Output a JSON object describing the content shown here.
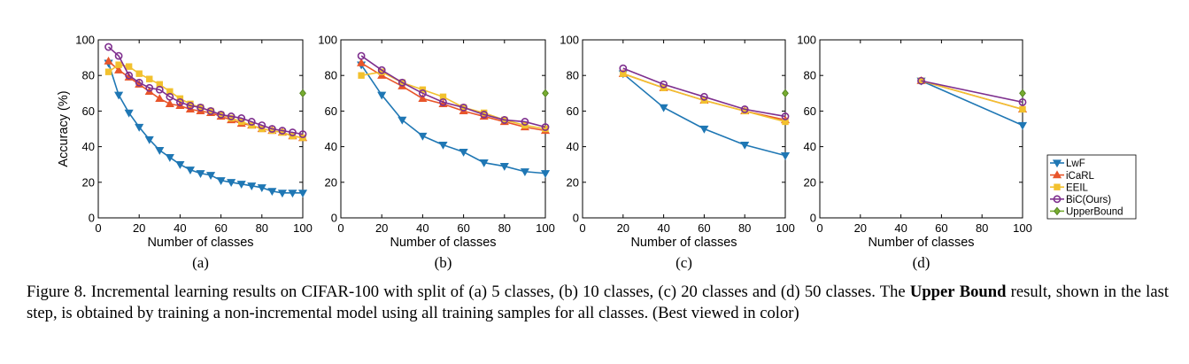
{
  "figure": {
    "caption": {
      "part1": "Figure 8. Incremental learning results on CIFAR-100 with split of (a) 5 classes, (b) 10 classes, (c) 20 classes and (d) 50 classes. The ",
      "bold1": "Upper",
      "bold2": "Bound",
      "part2": " result, shown in the last step, is obtained by training a non-incremental model using all training samples for all classes.  (Best viewed in color)"
    }
  },
  "colors": {
    "LwF": "#1f77b4",
    "iCaRL": "#e8552a",
    "EEIL": "#f2c12e",
    "BiC(Ours)": "#7e2f8e",
    "UpperBound": "#77ac30"
  },
  "legend_entries": [
    "LwF",
    "iCaRL",
    "EEIL",
    "BiC(Ours)",
    "UpperBound"
  ],
  "chart_data": [
    {
      "type": "line",
      "panel_label": "(a)",
      "xlabel": "Number of classes",
      "ylabel": "Accuracy (%)",
      "xlim": [
        0,
        100
      ],
      "ylim": [
        0,
        100
      ],
      "xticks": [
        0,
        20,
        40,
        60,
        80,
        100
      ],
      "yticks": [
        0,
        20,
        40,
        60,
        80,
        100
      ],
      "series": [
        {
          "name": "LwF",
          "marker": "tri-down",
          "x": [
            5,
            10,
            15,
            20,
            25,
            30,
            35,
            40,
            45,
            50,
            55,
            60,
            65,
            70,
            75,
            80,
            85,
            90,
            95,
            100
          ],
          "values": [
            87,
            69,
            59,
            51,
            44,
            38,
            34,
            30,
            27,
            25,
            24,
            21,
            20,
            19,
            18,
            17,
            15,
            14,
            14,
            14
          ]
        },
        {
          "name": "iCaRL",
          "marker": "tri-up",
          "x": [
            5,
            10,
            15,
            20,
            25,
            30,
            35,
            40,
            45,
            50,
            55,
            60,
            65,
            70,
            75,
            80,
            85,
            90,
            95,
            100
          ],
          "values": [
            88,
            83,
            79,
            75,
            71,
            67,
            64,
            63,
            61,
            60,
            59,
            57,
            55,
            53,
            52,
            50,
            49,
            48,
            46,
            45
          ]
        },
        {
          "name": "EEIL",
          "marker": "square",
          "x": [
            5,
            10,
            15,
            20,
            25,
            30,
            35,
            40,
            45,
            50,
            55,
            60,
            65,
            70,
            75,
            80,
            85,
            90,
            95,
            100
          ],
          "values": [
            82,
            86,
            85,
            81,
            78,
            75,
            71,
            67,
            64,
            62,
            60,
            58,
            56,
            54,
            52,
            50,
            49,
            48,
            46,
            45
          ]
        },
        {
          "name": "BiC(Ours)",
          "marker": "circle",
          "x": [
            5,
            10,
            15,
            20,
            25,
            30,
            35,
            40,
            45,
            50,
            55,
            60,
            65,
            70,
            75,
            80,
            85,
            90,
            95,
            100
          ],
          "values": [
            96,
            91,
            80,
            76,
            73,
            72,
            68,
            65,
            63,
            62,
            60,
            58,
            57,
            56,
            54,
            52,
            50,
            49,
            48,
            47
          ]
        },
        {
          "name": "UpperBound",
          "marker": "diamond",
          "x": [
            100
          ],
          "values": [
            70
          ]
        }
      ]
    },
    {
      "type": "line",
      "panel_label": "(b)",
      "xlabel": "Number of classes",
      "ylabel": "",
      "xlim": [
        0,
        100
      ],
      "ylim": [
        0,
        100
      ],
      "xticks": [
        0,
        20,
        40,
        60,
        80,
        100
      ],
      "yticks": [
        0,
        20,
        40,
        60,
        80,
        100
      ],
      "series": [
        {
          "name": "LwF",
          "marker": "tri-down",
          "x": [
            10,
            20,
            30,
            40,
            50,
            60,
            70,
            80,
            90,
            100
          ],
          "values": [
            86,
            69,
            55,
            46,
            41,
            37,
            31,
            29,
            26,
            25
          ]
        },
        {
          "name": "iCaRL",
          "marker": "tri-up",
          "x": [
            10,
            20,
            30,
            40,
            50,
            60,
            70,
            80,
            90,
            100
          ],
          "values": [
            87,
            80,
            74,
            67,
            64,
            60,
            57,
            54,
            51,
            49
          ]
        },
        {
          "name": "EEIL",
          "marker": "square",
          "x": [
            10,
            20,
            30,
            40,
            50,
            60,
            70,
            80,
            90,
            100
          ],
          "values": [
            80,
            82,
            76,
            72,
            68,
            62,
            59,
            55,
            52,
            50
          ]
        },
        {
          "name": "BiC(Ours)",
          "marker": "circle",
          "x": [
            10,
            20,
            30,
            40,
            50,
            60,
            70,
            80,
            90,
            100
          ],
          "values": [
            91,
            83,
            76,
            70,
            65,
            62,
            58,
            55,
            54,
            51
          ]
        },
        {
          "name": "UpperBound",
          "marker": "diamond",
          "x": [
            100
          ],
          "values": [
            70
          ]
        }
      ]
    },
    {
      "type": "line",
      "panel_label": "(c)",
      "xlabel": "Number of classes",
      "ylabel": "",
      "xlim": [
        0,
        100
      ],
      "ylim": [
        0,
        100
      ],
      "xticks": [
        0,
        20,
        40,
        60,
        80,
        100
      ],
      "yticks": [
        0,
        20,
        40,
        60,
        80,
        100
      ],
      "series": [
        {
          "name": "LwF",
          "marker": "tri-down",
          "x": [
            20,
            40,
            60,
            80,
            100
          ],
          "values": [
            81,
            62,
            50,
            41,
            35
          ]
        },
        {
          "name": "iCaRL",
          "marker": "tri-up",
          "x": [
            20,
            40,
            60,
            80,
            100
          ],
          "values": [
            81,
            73,
            66,
            60,
            55
          ]
        },
        {
          "name": "EEIL",
          "marker": "square",
          "x": [
            20,
            40,
            60,
            80,
            100
          ],
          "values": [
            81,
            73,
            66,
            60,
            54
          ]
        },
        {
          "name": "BiC(Ours)",
          "marker": "circle",
          "x": [
            20,
            40,
            60,
            80,
            100
          ],
          "values": [
            84,
            75,
            68,
            61,
            57
          ]
        },
        {
          "name": "UpperBound",
          "marker": "diamond",
          "x": [
            100
          ],
          "values": [
            70
          ]
        }
      ]
    },
    {
      "type": "line",
      "panel_label": "(d)",
      "xlabel": "Number of classes",
      "ylabel": "",
      "xlim": [
        0,
        100
      ],
      "ylim": [
        0,
        100
      ],
      "xticks": [
        0,
        20,
        40,
        60,
        80,
        100
      ],
      "yticks": [
        0,
        20,
        40,
        60,
        80,
        100
      ],
      "series": [
        {
          "name": "LwF",
          "marker": "tri-down",
          "x": [
            50,
            100
          ],
          "values": [
            77,
            52
          ]
        },
        {
          "name": "iCaRL",
          "marker": "tri-up",
          "x": [
            50,
            100
          ],
          "values": [
            77,
            61
          ]
        },
        {
          "name": "EEIL",
          "marker": "square",
          "x": [
            50,
            100
          ],
          "values": [
            77,
            61
          ]
        },
        {
          "name": "BiC(Ours)",
          "marker": "circle",
          "x": [
            50,
            100
          ],
          "values": [
            77,
            65
          ]
        },
        {
          "name": "UpperBound",
          "marker": "diamond",
          "x": [
            100
          ],
          "values": [
            70
          ]
        }
      ]
    }
  ]
}
